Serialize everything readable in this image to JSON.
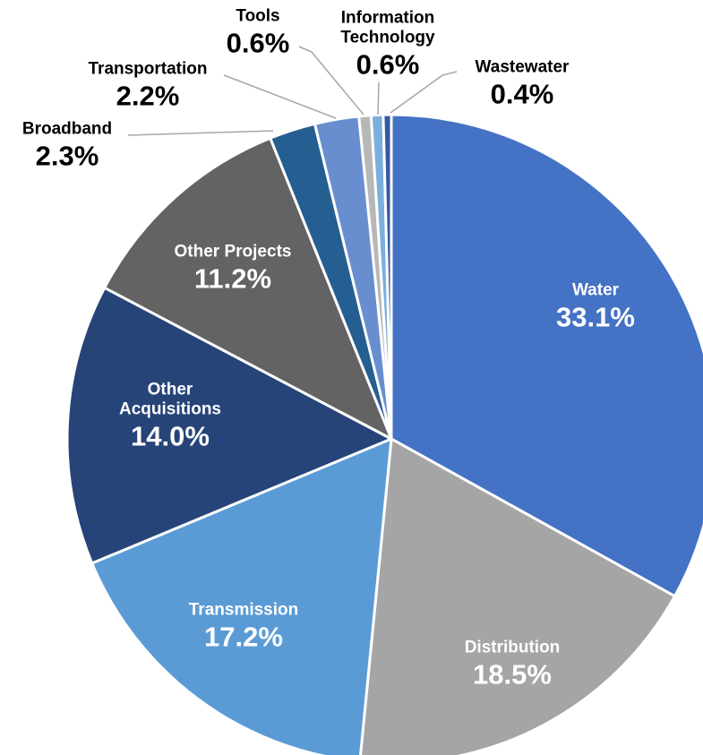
{
  "chart_data": {
    "type": "pie",
    "categories": [
      "Water",
      "Distribution",
      "Transmission",
      "Other Acquisitions",
      "Other Projects",
      "Broadband",
      "Transportation",
      "Tools",
      "Information Technology",
      "Wastewater"
    ],
    "values": [
      33.1,
      18.5,
      17.2,
      14.0,
      11.2,
      2.3,
      2.2,
      0.6,
      0.6,
      0.4
    ],
    "value_labels": [
      "33.1%",
      "18.5%",
      "17.2%",
      "14.0%",
      "11.2%",
      "2.3%",
      "2.2%",
      "0.6%",
      "0.6%",
      "0.4%"
    ],
    "colors": [
      "#4472c4",
      "#a5a5a5",
      "#5b9bd5",
      "#264478",
      "#636363",
      "#255e91",
      "#698ed0",
      "#b7b7b7",
      "#7cafdd",
      "#335aa1"
    ]
  }
}
